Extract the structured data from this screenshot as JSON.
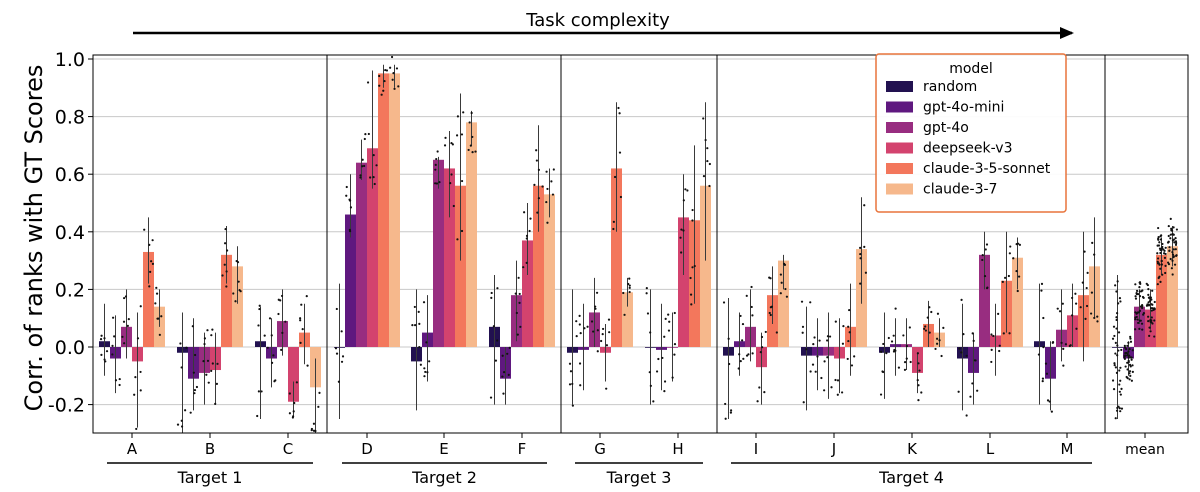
{
  "colors": {
    "random": "#221150",
    "gpt-4o-mini": "#5f187f",
    "gpt-4o": "#982d80",
    "deepseek-v3": "#d3436e",
    "claude-3-5-sonnet": "#f3775c",
    "claude-3-7": "#f6b88c",
    "legend_border": "#e8743b",
    "grid": "#c8c8c8"
  },
  "chart_data": {
    "type": "bar",
    "title": "Task complexity",
    "ylabel": "Corr. of ranks with GT Scores",
    "xlabel": "",
    "ylim": [
      -0.3,
      1.0
    ],
    "yticks": [
      -0.2,
      0.0,
      0.2,
      0.4,
      0.6,
      0.8,
      1.0
    ],
    "grid": "horizontal",
    "legend": {
      "title": "model",
      "placement": "top-right",
      "entries": [
        "random",
        "gpt-4o-mini",
        "gpt-4o",
        "deepseek-v3",
        "claude-3-5-sonnet",
        "claude-3-7"
      ]
    },
    "categories": [
      "A",
      "B",
      "C",
      "D",
      "E",
      "F",
      "G",
      "H",
      "I",
      "J",
      "K",
      "L",
      "M",
      "mean"
    ],
    "panels": [
      {
        "categories": [
          "A",
          "B",
          "C"
        ]
      },
      {
        "categories": [
          "D",
          "E",
          "F"
        ]
      },
      {
        "categories": [
          "G",
          "H"
        ]
      },
      {
        "categories": [
          "I",
          "J",
          "K",
          "L",
          "M"
        ]
      },
      {
        "categories": [
          "mean"
        ]
      }
    ],
    "groups": [
      {
        "label": "Target 1",
        "categories": [
          "A",
          "B",
          "C"
        ]
      },
      {
        "label": "Target 2",
        "categories": [
          "D",
          "E",
          "F"
        ]
      },
      {
        "label": "Target 3",
        "categories": [
          "G",
          "H"
        ]
      },
      {
        "label": "Target 4",
        "categories": [
          "I",
          "J",
          "K",
          "L",
          "M"
        ]
      }
    ],
    "series": [
      {
        "name": "random",
        "values": [
          0.02,
          -0.02,
          0.02,
          0.0,
          -0.05,
          0.07,
          -0.02,
          0.0,
          -0.03,
          -0.03,
          -0.02,
          -0.04,
          0.02,
          0.0
        ],
        "err": [
          [
            -0.1,
            0.15
          ],
          [
            -0.3,
            0.12
          ],
          [
            -0.25,
            0.14
          ],
          [
            -0.25,
            0.22
          ],
          [
            -0.22,
            0.2
          ],
          [
            -0.2,
            0.25
          ],
          [
            -0.2,
            0.2
          ],
          [
            -0.2,
            0.2
          ],
          [
            -0.25,
            0.17
          ],
          [
            -0.22,
            0.14
          ],
          [
            -0.18,
            0.12
          ],
          [
            -0.22,
            0.15
          ],
          [
            -0.2,
            0.22
          ],
          [
            -0.25,
            0.25
          ]
        ]
      },
      {
        "name": "gpt-4o-mini",
        "values": [
          -0.04,
          -0.11,
          -0.04,
          0.46,
          0.05,
          -0.11,
          -0.01,
          -0.01,
          0.02,
          -0.03,
          0.01,
          -0.09,
          -0.11,
          -0.04
        ],
        "err": [
          [
            -0.16,
            0.11
          ],
          [
            -0.22,
            0.1
          ],
          [
            -0.14,
            0.1
          ],
          [
            0.38,
            0.6
          ],
          [
            -0.12,
            0.18
          ],
          [
            -0.2,
            0.0
          ],
          [
            -0.15,
            0.15
          ],
          [
            -0.15,
            0.15
          ],
          [
            -0.1,
            0.12
          ],
          [
            -0.15,
            0.1
          ],
          [
            -0.1,
            0.1
          ],
          [
            -0.2,
            0.05
          ],
          [
            -0.22,
            0.02
          ],
          [
            -0.1,
            0.02
          ]
        ]
      },
      {
        "name": "gpt-4o",
        "values": [
          0.07,
          -0.09,
          0.09,
          0.64,
          0.65,
          0.18,
          0.12,
          0.0,
          0.07,
          -0.03,
          0.01,
          0.32,
          0.06,
          0.14
        ],
        "err": [
          [
            -0.04,
            0.2
          ],
          [
            -0.2,
            0.05
          ],
          [
            -0.03,
            0.2
          ],
          [
            0.58,
            0.72
          ],
          [
            0.55,
            0.66
          ],
          [
            0.02,
            0.3
          ],
          [
            0.0,
            0.24
          ],
          [
            -0.12,
            0.12
          ],
          [
            -0.05,
            0.2
          ],
          [
            -0.18,
            0.12
          ],
          [
            -0.08,
            0.1
          ],
          [
            0.2,
            0.4
          ],
          [
            -0.05,
            0.2
          ],
          [
            0.08,
            0.2
          ]
        ]
      },
      {
        "name": "deepseek-v3",
        "values": [
          -0.05,
          -0.08,
          -0.19,
          0.69,
          0.62,
          0.37,
          -0.02,
          0.45,
          -0.07,
          -0.04,
          -0.09,
          0.04,
          0.11,
          0.13
        ],
        "err": [
          [
            -0.28,
            0.12
          ],
          [
            -0.2,
            0.05
          ],
          [
            -0.24,
            -0.12
          ],
          [
            0.55,
            0.96
          ],
          [
            0.45,
            0.75
          ],
          [
            0.25,
            0.5
          ],
          [
            -0.12,
            0.08
          ],
          [
            0.25,
            0.6
          ],
          [
            -0.2,
            0.05
          ],
          [
            -0.16,
            0.1
          ],
          [
            -0.16,
            -0.02
          ],
          [
            -0.1,
            0.15
          ],
          [
            0.0,
            0.22
          ],
          [
            0.06,
            0.2
          ]
        ]
      },
      {
        "name": "claude-3-5-sonnet",
        "values": [
          0.33,
          0.32,
          0.05,
          0.95,
          0.56,
          0.56,
          0.62,
          0.44,
          0.18,
          0.07,
          0.08,
          0.23,
          0.18,
          0.32
        ],
        "err": [
          [
            0.22,
            0.45
          ],
          [
            0.22,
            0.42
          ],
          [
            -0.06,
            0.15
          ],
          [
            0.9,
            0.98
          ],
          [
            0.3,
            0.88
          ],
          [
            0.4,
            0.77
          ],
          [
            0.4,
            0.85
          ],
          [
            0.15,
            0.7
          ],
          [
            0.08,
            0.28
          ],
          [
            -0.1,
            0.22
          ],
          [
            0.0,
            0.16
          ],
          [
            0.05,
            0.4
          ],
          [
            -0.05,
            0.4
          ],
          [
            0.25,
            0.38
          ]
        ]
      },
      {
        "name": "claude-3-7",
        "values": [
          0.14,
          0.28,
          -0.14,
          0.95,
          0.78,
          0.53,
          0.19,
          0.56,
          0.3,
          0.34,
          0.05,
          0.31,
          0.28,
          0.35
        ],
        "err": [
          [
            0.07,
            0.2
          ],
          [
            0.15,
            0.35
          ],
          [
            -0.3,
            -0.04
          ],
          [
            0.9,
            0.98
          ],
          [
            0.7,
            0.82
          ],
          [
            0.45,
            0.62
          ],
          [
            0.14,
            0.24
          ],
          [
            0.3,
            0.85
          ],
          [
            0.2,
            0.32
          ],
          [
            0.15,
            0.52
          ],
          [
            0.0,
            0.1
          ],
          [
            0.2,
            0.38
          ],
          [
            0.1,
            0.45
          ],
          [
            0.28,
            0.42
          ]
        ]
      }
    ]
  }
}
